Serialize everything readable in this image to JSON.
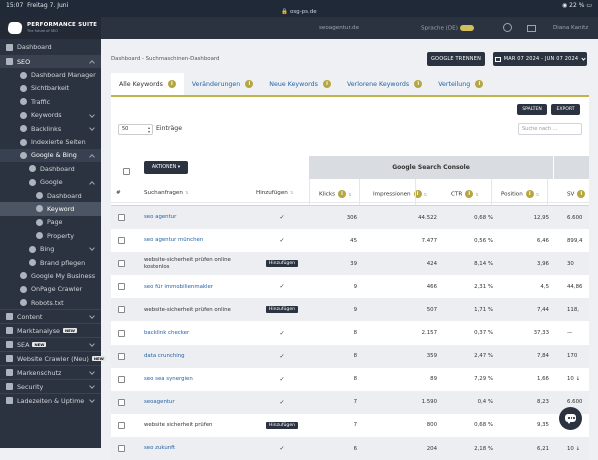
{
  "statusbar": {
    "time": "15:07",
    "date": "Freitag 7. Juni",
    "url": "osg-ps.de",
    "battery": "22 %"
  },
  "brand": {
    "name": "PERFORMANCE SUITE",
    "tagline": "The future of SEO"
  },
  "sidebar": {
    "items": [
      {
        "label": "Dashboard",
        "level": 1,
        "style": "section-top"
      },
      {
        "label": "SEO",
        "level": 1,
        "style": "section",
        "chevron": "up"
      },
      {
        "label": "Dashboard Manager",
        "level": 2
      },
      {
        "label": "Sichtbarkeit",
        "level": 2
      },
      {
        "label": "Traffic",
        "level": 2
      },
      {
        "label": "Keywords",
        "level": 2,
        "chevron": "down"
      },
      {
        "label": "Backlinks",
        "level": 2,
        "chevron": "down"
      },
      {
        "label": "Indexierte Seiten",
        "level": 2
      },
      {
        "label": "Google & Bing",
        "level": 2,
        "style": "active-sub",
        "chevron": "up"
      },
      {
        "label": "Dashboard",
        "level": 3
      },
      {
        "label": "Google",
        "level": 3,
        "chevron": "up"
      },
      {
        "label": "Dashboard",
        "level": 4
      },
      {
        "label": "Keyword",
        "level": 4,
        "style": "current"
      },
      {
        "label": "Page",
        "level": 4
      },
      {
        "label": "Property",
        "level": 4
      },
      {
        "label": "Bing",
        "level": 3,
        "chevron": "down"
      },
      {
        "label": "Brand pflegen",
        "level": 3
      },
      {
        "label": "Google My Business",
        "level": 2
      },
      {
        "label": "OnPage Crawler",
        "level": 2
      },
      {
        "label": "Robots.txt",
        "level": 2
      },
      {
        "label": "Content",
        "level": 1,
        "chevron": "down"
      },
      {
        "label": "Marktanalyse",
        "level": 1,
        "badge": "NEW"
      },
      {
        "label": "SEA",
        "level": 1,
        "badge": "NEW",
        "chevron": "down"
      },
      {
        "label": "Website Crawler (Neu)",
        "level": 1,
        "badge": "NEW"
      },
      {
        "label": "Markenschutz",
        "level": 1,
        "chevron": "down"
      },
      {
        "label": "Security",
        "level": 1,
        "chevron": "down"
      },
      {
        "label": "Ladezeiten & Uptime",
        "level": 1,
        "chevron": "down"
      }
    ]
  },
  "topbar": {
    "domain": "seoagentur.de",
    "language": "Sprache (DE)",
    "user": "Diana Kanitz"
  },
  "breadcrumb": "Dashboard - Suchmaschinen-Dashboard",
  "buttons": {
    "google_disconnect": "GOOGLE TRENNEN",
    "date_range": "MAR 07 2024 - JUN 07 2024",
    "columns": "SPALTEN",
    "export": "EXPORT",
    "actions": "AKTIONEN"
  },
  "tabs": [
    {
      "label": "Alle Keywords",
      "active": true
    },
    {
      "label": "Veränderungen",
      "active": false
    },
    {
      "label": "Neue Keywords",
      "active": false
    },
    {
      "label": "Verlorene Keywords",
      "active": false
    },
    {
      "label": "Verteilung",
      "active": false
    }
  ],
  "table_controls": {
    "page_size": "50",
    "entries_label": "Einträge",
    "search_placeholder": "Suche nach ..."
  },
  "table": {
    "group_header": "Google Search Console",
    "columns": [
      "#",
      "Suchanfragen",
      "Hinzufügen",
      "Klicks",
      "Impressionen",
      "CTR",
      "Position",
      "SV"
    ],
    "rows": [
      {
        "keyword": "seo agentur",
        "link": true,
        "add": "check",
        "clicks": "306",
        "impressions": "44.522",
        "ctr": "0,68 %",
        "position": "12,95",
        "sv": "6.600"
      },
      {
        "keyword": "seo agentur münchen",
        "link": true,
        "add": "check",
        "clicks": "45",
        "impressions": "7.477",
        "ctr": "0,56 %",
        "position": "6,46",
        "sv": "899,4"
      },
      {
        "keyword": "website-sicherheit prüfen online kostenlos",
        "link": false,
        "add": "Hinzufügen",
        "clicks": "39",
        "impressions": "424",
        "ctr": "8,14 %",
        "position": "3,96",
        "sv": "30"
      },
      {
        "keyword": "seo für immobilienmakler",
        "link": true,
        "add": "check",
        "clicks": "9",
        "impressions": "466",
        "ctr": "2,31 %",
        "position": "4,5",
        "sv": "44,86"
      },
      {
        "keyword": "website-sicherheit prüfen online",
        "link": false,
        "add": "Hinzufügen",
        "clicks": "9",
        "impressions": "507",
        "ctr": "1,71 %",
        "position": "7,44",
        "sv": "118,"
      },
      {
        "keyword": "backlink checker",
        "link": true,
        "add": "check",
        "clicks": "8",
        "impressions": "2.157",
        "ctr": "0,37 %",
        "position": "37,33",
        "sv": "—"
      },
      {
        "keyword": "data crunching",
        "link": true,
        "add": "check",
        "clicks": "8",
        "impressions": "359",
        "ctr": "2,47 %",
        "position": "7,84",
        "sv": "170"
      },
      {
        "keyword": "seo sea synergien",
        "link": true,
        "add": "check",
        "clicks": "8",
        "impressions": "89",
        "ctr": "7,29 %",
        "position": "1,66",
        "sv": "10 ↓"
      },
      {
        "keyword": "seoagentur",
        "link": true,
        "add": "check",
        "clicks": "7",
        "impressions": "1.590",
        "ctr": "0,4 %",
        "position": "8,23",
        "sv": "6.600"
      },
      {
        "keyword": "website sicherheit prüfen",
        "link": false,
        "add": "Hinzufügen",
        "clicks": "7",
        "impressions": "800",
        "ctr": "0,68 %",
        "position": "9,35",
        "sv": "10 ↓"
      },
      {
        "keyword": "seo zukunft",
        "link": true,
        "add": "check",
        "clicks": "6",
        "impressions": "204",
        "ctr": "2,18 %",
        "position": "6,21",
        "sv": "10 ↓"
      }
    ]
  },
  "colors": {
    "accent_gold": "#c4b34d",
    "sidebar_bg": "#2c3340",
    "link_blue": "#2563a8"
  }
}
